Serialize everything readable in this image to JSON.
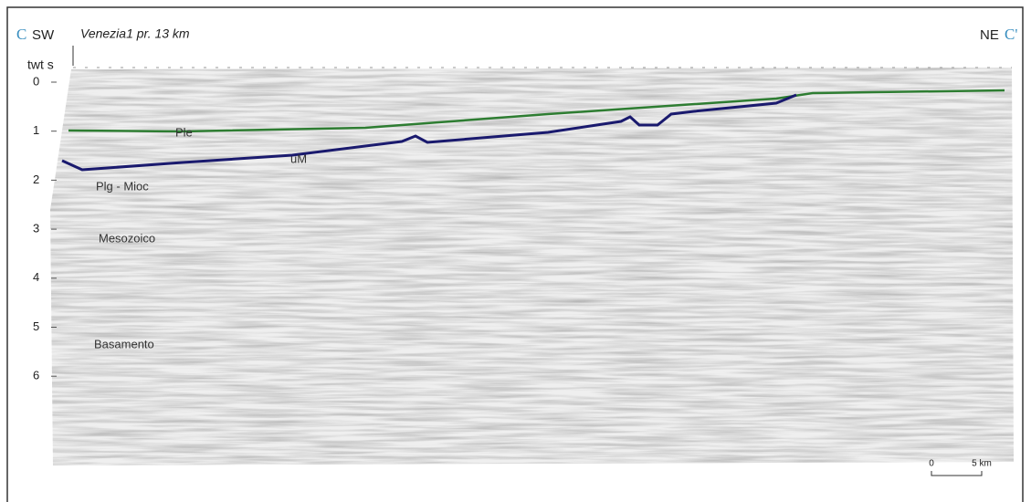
{
  "header": {
    "left_letter": "C",
    "left_direction": "SW",
    "well": "Venezia1 pr. 13 km",
    "right_direction": "NE",
    "right_letter": "C'"
  },
  "axis": {
    "label": "twt s",
    "ticks": [
      0,
      1,
      2,
      3,
      4,
      5,
      6
    ]
  },
  "units": [
    {
      "label": "Ple"
    },
    {
      "label": "uM"
    },
    {
      "label": "Plg - Mioc"
    },
    {
      "label": "Mesozoico"
    },
    {
      "label": "Basamento"
    }
  ],
  "scale_bar": {
    "start": "0",
    "end": "5 km"
  }
}
